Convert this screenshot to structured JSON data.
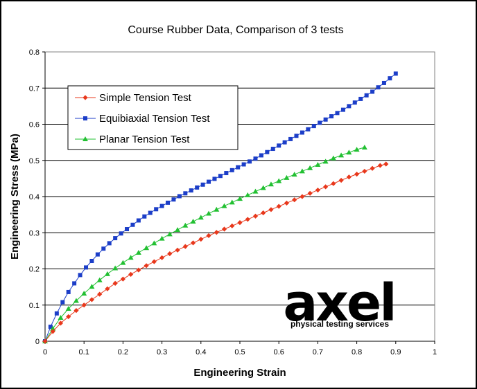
{
  "chart_data": {
    "type": "line",
    "title": "Course Rubber Data, Comparison of 3 tests",
    "xlabel": "Engineering Strain",
    "ylabel": "Engineering Stress (MPa)",
    "xlim": [
      0,
      1
    ],
    "ylim": [
      0,
      0.8
    ],
    "x_ticks": [
      "0",
      "0.1",
      "0.2",
      "0.3",
      "0.4",
      "0.5",
      "0.6",
      "0.7",
      "0.8",
      "0.9",
      "1"
    ],
    "y_ticks": [
      "0",
      "0.1",
      "0.2",
      "0.3",
      "0.4",
      "0.5",
      "0.6",
      "0.7",
      "0.8"
    ],
    "grid": "horizontal",
    "legend_position": "top-left",
    "series": [
      {
        "name": "Simple Tension Test",
        "color": "#e8381c",
        "marker": "diamond",
        "x": [
          0,
          0.02,
          0.04,
          0.06,
          0.08,
          0.1,
          0.12,
          0.14,
          0.16,
          0.18,
          0.2,
          0.22,
          0.24,
          0.26,
          0.28,
          0.3,
          0.32,
          0.34,
          0.36,
          0.38,
          0.4,
          0.42,
          0.44,
          0.46,
          0.48,
          0.5,
          0.52,
          0.54,
          0.56,
          0.58,
          0.6,
          0.62,
          0.64,
          0.66,
          0.68,
          0.7,
          0.72,
          0.74,
          0.76,
          0.78,
          0.8,
          0.82,
          0.84,
          0.86,
          0.875
        ],
        "y": [
          0,
          0.027,
          0.05,
          0.068,
          0.085,
          0.1,
          0.115,
          0.13,
          0.145,
          0.16,
          0.172,
          0.185,
          0.197,
          0.209,
          0.22,
          0.231,
          0.242,
          0.252,
          0.262,
          0.272,
          0.282,
          0.292,
          0.301,
          0.31,
          0.319,
          0.328,
          0.337,
          0.346,
          0.355,
          0.364,
          0.373,
          0.382,
          0.391,
          0.4,
          0.409,
          0.418,
          0.427,
          0.436,
          0.445,
          0.454,
          0.462,
          0.47,
          0.478,
          0.486,
          0.49
        ]
      },
      {
        "name": "Equibiaxial Tension Test",
        "color": "#1c3ec8",
        "marker": "square",
        "x": [
          0,
          0.014,
          0.03,
          0.045,
          0.06,
          0.075,
          0.09,
          0.105,
          0.12,
          0.135,
          0.15,
          0.165,
          0.18,
          0.195,
          0.21,
          0.225,
          0.24,
          0.255,
          0.27,
          0.285,
          0.3,
          0.315,
          0.33,
          0.345,
          0.36,
          0.375,
          0.39,
          0.405,
          0.42,
          0.435,
          0.45,
          0.465,
          0.48,
          0.495,
          0.51,
          0.525,
          0.54,
          0.555,
          0.57,
          0.585,
          0.6,
          0.615,
          0.63,
          0.645,
          0.66,
          0.675,
          0.69,
          0.705,
          0.72,
          0.735,
          0.75,
          0.765,
          0.78,
          0.795,
          0.81,
          0.825,
          0.84,
          0.855,
          0.87,
          0.885,
          0.9
        ],
        "y": [
          0,
          0.04,
          0.077,
          0.108,
          0.136,
          0.16,
          0.183,
          0.204,
          0.222,
          0.24,
          0.256,
          0.271,
          0.285,
          0.298,
          0.31,
          0.322,
          0.334,
          0.345,
          0.355,
          0.365,
          0.374,
          0.383,
          0.392,
          0.401,
          0.409,
          0.417,
          0.425,
          0.433,
          0.441,
          0.449,
          0.457,
          0.465,
          0.473,
          0.481,
          0.489,
          0.497,
          0.505,
          0.514,
          0.523,
          0.532,
          0.541,
          0.55,
          0.559,
          0.568,
          0.577,
          0.586,
          0.595,
          0.604,
          0.613,
          0.622,
          0.631,
          0.64,
          0.65,
          0.66,
          0.67,
          0.68,
          0.69,
          0.702,
          0.714,
          0.727,
          0.74
        ]
      },
      {
        "name": "Planar Tension Test",
        "color": "#22c032",
        "marker": "triangle",
        "x": [
          0,
          0.02,
          0.04,
          0.06,
          0.08,
          0.1,
          0.12,
          0.14,
          0.16,
          0.18,
          0.2,
          0.22,
          0.24,
          0.26,
          0.28,
          0.3,
          0.32,
          0.34,
          0.36,
          0.38,
          0.4,
          0.42,
          0.44,
          0.46,
          0.48,
          0.5,
          0.52,
          0.54,
          0.56,
          0.58,
          0.6,
          0.62,
          0.64,
          0.66,
          0.68,
          0.7,
          0.72,
          0.74,
          0.76,
          0.78,
          0.8,
          0.82
        ],
        "y": [
          0,
          0.035,
          0.065,
          0.09,
          0.112,
          0.132,
          0.151,
          0.169,
          0.186,
          0.202,
          0.217,
          0.231,
          0.245,
          0.258,
          0.271,
          0.284,
          0.296,
          0.308,
          0.32,
          0.331,
          0.342,
          0.353,
          0.364,
          0.374,
          0.384,
          0.394,
          0.404,
          0.414,
          0.424,
          0.434,
          0.443,
          0.452,
          0.461,
          0.47,
          0.479,
          0.488,
          0.497,
          0.506,
          0.514,
          0.522,
          0.53,
          0.536
        ]
      }
    ]
  },
  "logo": {
    "wordmark": "axel",
    "tagline": "physical testing services"
  }
}
